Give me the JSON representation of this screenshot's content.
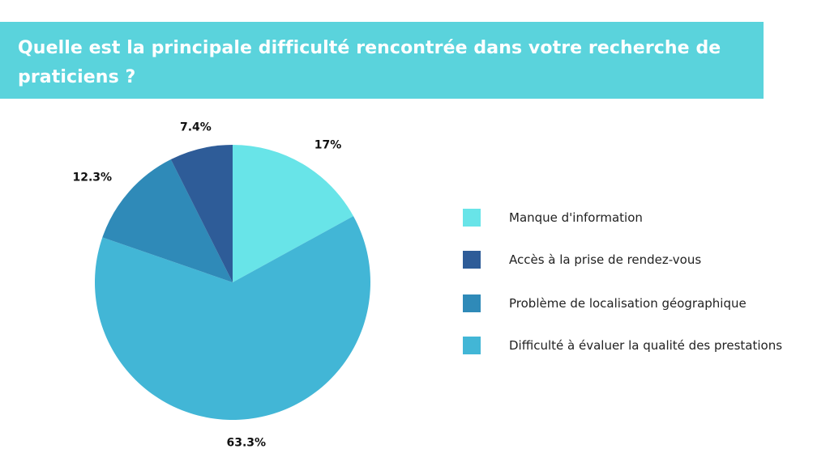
{
  "title": "Quelle est la principale difficulté rencontrée dans votre recherche de praticiens ?",
  "chart_data": {
    "type": "pie",
    "start_angle_deg": 0,
    "direction": "clockwise",
    "slices": [
      {
        "name": "Manque d'information",
        "value": 17,
        "label": "17%",
        "color": "#68e4e8"
      },
      {
        "name": "Difficulté à évaluer la qualité des prestations",
        "value": 63.3,
        "label": "63.3%",
        "color": "#42b6d6"
      },
      {
        "name": "Problème de localisation géographique",
        "value": 12.3,
        "label": "12.3%",
        "color": "#2f8ab8"
      },
      {
        "name": "Accès à la prise de rendez-vous",
        "value": 7.4,
        "label": "7.4%",
        "color": "#2e5c98"
      }
    ],
    "legend_position": "right",
    "legend": [
      {
        "label": "Manque d'information",
        "color": "#68e4e8"
      },
      {
        "label": "Accès à la prise de rendez-vous",
        "color": "#2e5c98"
      },
      {
        "label": "Problème de localisation géographique",
        "color": "#2f8ab8"
      },
      {
        "label": "Difficulté à évaluer la qualité des prestations",
        "color": "#42b6d6"
      }
    ]
  }
}
